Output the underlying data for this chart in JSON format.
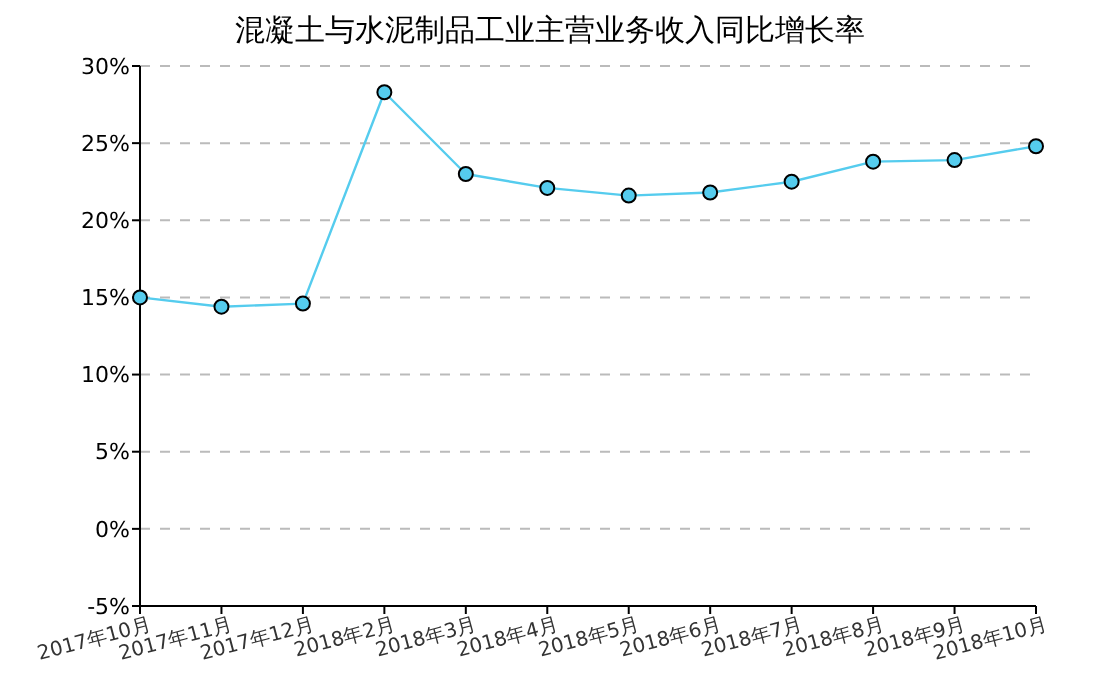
{
  "chart_data": {
    "type": "line",
    "title": "混凝土与水泥制品工业主营业务收入同比增长率",
    "categories": [
      "2017年10月",
      "2017年11月",
      "2017年12月",
      "2018年2月",
      "2018年3月",
      "2018年4月",
      "2018年5月",
      "2018年6月",
      "2018年7月",
      "2018年8月",
      "2018年9月",
      "2018年10月"
    ],
    "series": [
      {
        "color": "#55ccee",
        "values": [
          15.0,
          14.4,
          14.6,
          28.3,
          23.0,
          22.1,
          21.6,
          21.8,
          22.5,
          23.8,
          23.9,
          24.8
        ]
      }
    ],
    "ylim": [
      -5,
      30
    ],
    "yticks": [
      {
        "value": -5,
        "label": "-5%"
      },
      {
        "value": 0,
        "label": "0%"
      },
      {
        "value": 5,
        "label": "5%"
      },
      {
        "value": 10,
        "label": "10%"
      },
      {
        "value": 15,
        "label": "15%"
      },
      {
        "value": 20,
        "label": "20%"
      },
      {
        "value": 25,
        "label": "25%"
      },
      {
        "value": 30,
        "label": "30%"
      }
    ],
    "grid": "y",
    "marker": "circle"
  }
}
